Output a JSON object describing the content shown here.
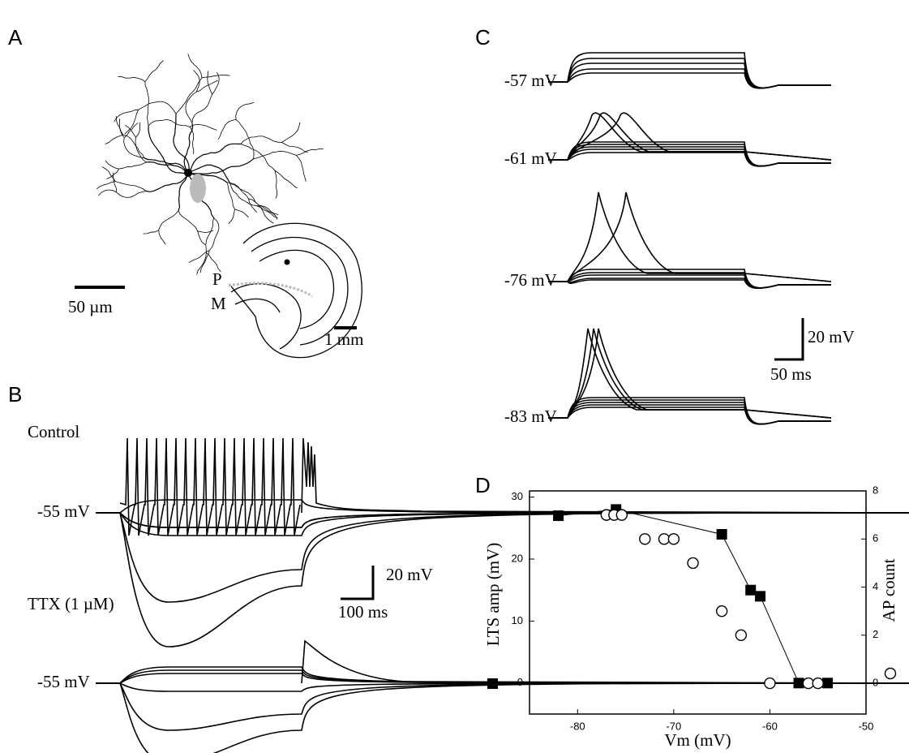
{
  "figure": {
    "A": {
      "letter": "A",
      "scale_bar": "50 µm",
      "inset_p": "P",
      "inset_m": "M",
      "inset_scale": "1 mm"
    },
    "B": {
      "letter": "B",
      "control": "Control",
      "control_vm": "-55 mV",
      "scale_mv": "20 mV",
      "scale_ms": "100 ms",
      "ttx": "TTX (1 µM)",
      "ttx_vm": "-55 mV"
    },
    "C": {
      "letter": "C",
      "vm": [
        "-57 mV",
        "-61 mV",
        "-76 mV",
        "-83 mV"
      ],
      "scale_mv": "20 mV",
      "scale_ms": "50 ms"
    },
    "D": {
      "letter": "D"
    }
  },
  "chart_data": {
    "type": "scatter",
    "xlabel": "Vm (mV)",
    "ylabel": "LTS amp (mV)",
    "y2label": "AP count",
    "xlim": [
      -85,
      -50
    ],
    "xticks": [
      -80,
      -70,
      -60,
      -50
    ],
    "ylim": [
      -5,
      31
    ],
    "yticks": [
      0,
      10,
      20,
      30
    ],
    "y2lim": [
      -1.28,
      8
    ],
    "y2ticks": [
      0,
      2,
      4,
      6,
      8
    ],
    "series": [
      {
        "color": "#000000",
        "marker": "square",
        "line": true,
        "x": [
          -82,
          -76,
          -65,
          -62,
          -61,
          -57,
          -54
        ],
        "values": [
          27,
          28,
          24,
          15,
          14,
          0,
          0
        ]
      },
      {
        "color": "#000000",
        "marker": "circle",
        "line": false,
        "axis": "y2",
        "x": [
          -77,
          -76.2,
          -75.4,
          -73,
          -71,
          -70,
          -68,
          -65,
          -63,
          -60,
          -56,
          -55
        ],
        "values": [
          7,
          7,
          7,
          6,
          6,
          6,
          5,
          3,
          2,
          0,
          0,
          0
        ]
      }
    ]
  }
}
